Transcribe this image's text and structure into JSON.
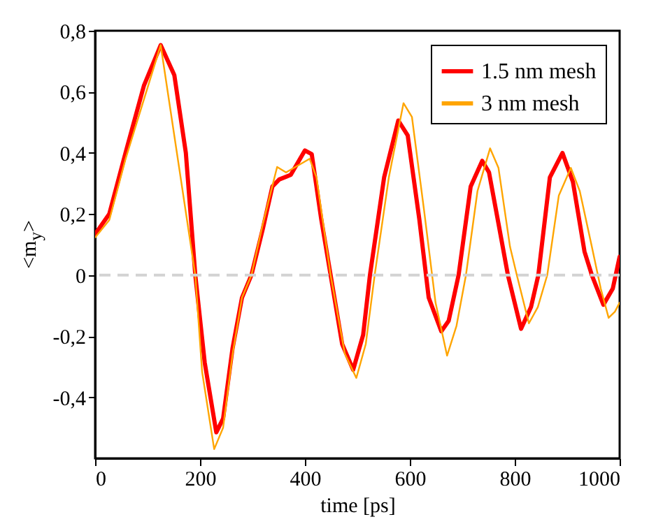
{
  "chart_data": {
    "type": "line",
    "xlabel": "time [ps]",
    "ylabel": "<m$_{y}$>",
    "xlim": [
      0,
      1000
    ],
    "xticks": [
      0,
      200,
      400,
      600,
      800,
      1000
    ],
    "ylim": [
      -0.6,
      0.8
    ],
    "yticks": [
      {
        "value": -0.4,
        "label": "-0,4"
      },
      {
        "value": -0.2,
        "label": "-0,2"
      },
      {
        "value": 0,
        "label": "0"
      },
      {
        "value": 0.2,
        "label": "0,2"
      },
      {
        "value": 0.4,
        "label": "0,4"
      },
      {
        "value": 0.6,
        "label": "0,6"
      },
      {
        "value": 0.8,
        "label": "0,8"
      }
    ],
    "grid": false,
    "legend": "top right",
    "marker": "none",
    "line_style": "solid",
    "ref_lines": [
      {
        "axis": "y",
        "value": 0,
        "color": "#d3d3d3",
        "line_style": "dashed"
      }
    ],
    "series": [
      {
        "name": "1.5 nm mesh",
        "color": "#ff0000",
        "x": [
          0,
          27,
          58,
          93,
          125,
          151,
          173,
          191,
          209,
          231,
          244,
          262,
          280,
          298,
          320,
          338,
          351,
          373,
          400,
          413,
          431,
          449,
          471,
          492,
          511,
          524,
          551,
          578,
          596,
          618,
          636,
          660,
          674,
          693,
          716,
          738,
          751,
          769,
          787,
          812,
          831,
          845,
          867,
          891,
          911,
          933,
          947,
          969,
          987,
          1000
        ],
        "values": [
          0.134,
          0.2,
          0.4,
          0.62,
          0.753,
          0.655,
          0.4,
          0,
          -0.287,
          -0.515,
          -0.47,
          -0.24,
          -0.074,
          0,
          0.153,
          0.29,
          0.313,
          0.328,
          0.408,
          0.396,
          0.184,
          0,
          -0.226,
          -0.31,
          -0.196,
          0,
          0.32,
          0.506,
          0.457,
          0.184,
          -0.074,
          -0.184,
          -0.15,
          0,
          0.29,
          0.374,
          0.336,
          0.169,
          0,
          -0.176,
          -0.105,
          0,
          0.32,
          0.4,
          0.305,
          0.077,
          0,
          -0.097,
          -0.044,
          0.06
        ]
      },
      {
        "name": "3 nm mesh",
        "color": "#ffa500",
        "x": [
          0,
          27,
          58,
          125,
          191,
          204,
          227,
          244,
          262,
          280,
          298,
          320,
          347,
          364,
          409,
          422,
          449,
          476,
          498,
          516,
          533,
          560,
          588,
          604,
          627,
          649,
          671,
          689,
          707,
          729,
          753,
          769,
          791,
          804,
          827,
          844,
          862,
          884,
          907,
          924,
          947,
          964,
          979,
          991,
          1000
        ],
        "values": [
          0.123,
          0.18,
          0.38,
          0.753,
          0,
          -0.317,
          -0.57,
          -0.5,
          -0.26,
          -0.074,
          0,
          0.169,
          0.354,
          0.336,
          0.381,
          0.32,
          0,
          -0.257,
          -0.337,
          -0.226,
          0,
          0.32,
          0.563,
          0.518,
          0.214,
          -0.09,
          -0.264,
          -0.166,
          0,
          0.275,
          0.415,
          0.351,
          0.093,
          0,
          -0.158,
          -0.105,
          0,
          0.26,
          0.351,
          0.275,
          0.093,
          -0.044,
          -0.14,
          -0.12,
          -0.09
        ]
      }
    ]
  }
}
